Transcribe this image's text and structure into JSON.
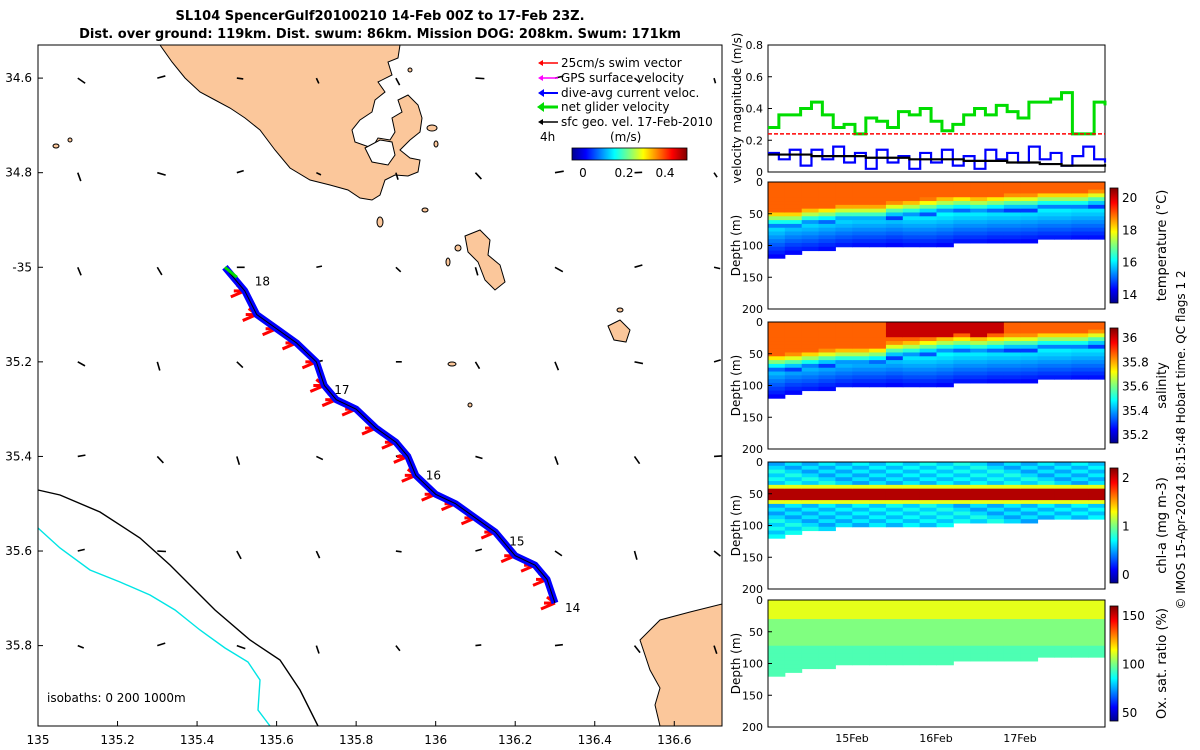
{
  "title": {
    "line1": "SL104 SpencerGulf20100210 14-Feb 00Z to 17-Feb 23Z.",
    "line2": "Dist. over ground: 119km. Dist. swum: 86km. Mission DOG: 208km. Swum: 171km"
  },
  "colors": {
    "land": "#fbc79b",
    "track": "#0000ff",
    "swim": "#ff0000",
    "glider": "#00dd00",
    "isobath200": "#000000",
    "isobath1000": "#00e5e5"
  },
  "chart_data": [
    {
      "type": "map",
      "xlim": [
        135,
        136.72
      ],
      "ylim": [
        -35.97,
        -34.53
      ],
      "xticks": [
        135,
        135.2,
        135.4,
        135.6,
        135.8,
        136,
        136.2,
        136.4,
        136.6
      ],
      "xtick_labels": [
        "135",
        "135.2",
        "135.4",
        "135.6",
        "135.8",
        "136",
        "136.2",
        "136.4",
        "136.6"
      ],
      "yticks": [
        -34.6,
        -34.8,
        -35.0,
        -35.2,
        -35.4,
        -35.6,
        -35.8
      ],
      "ytick_labels": [
        "34.6",
        "34.8",
        "-35",
        "35.2",
        "35.4",
        "35.6",
        "35.8"
      ],
      "legend": {
        "items": [
          {
            "label": "25cm/s swim vector",
            "color": "#ff0000"
          },
          {
            "label": "GPS surface velocity",
            "color": "#ff00ff"
          },
          {
            "label": "dive-avg current veloc.",
            "color": "#0000ff"
          },
          {
            "label": "net glider velocity",
            "color": "#00dd00"
          },
          {
            "label": "sfc geo. vel. 17-Feb-2010",
            "color": "#000000"
          }
        ],
        "note": "4h",
        "colorbar_unit": "(m/s)",
        "colorbar_ticks": [
          "0",
          "0.2",
          "0.4"
        ],
        "placement": "top-right"
      },
      "isobath_label": "isobaths: 0   200  1000m",
      "track": {
        "lon": [
          135.47,
          135.52,
          135.55,
          135.6,
          135.65,
          135.7,
          135.72,
          135.75,
          135.8,
          135.85,
          135.9,
          135.93,
          135.95,
          136.0,
          136.05,
          136.1,
          136.15,
          136.2,
          136.25,
          136.28,
          136.3
        ],
        "lat": [
          -35.0,
          -35.05,
          -35.1,
          -35.13,
          -35.16,
          -35.2,
          -35.25,
          -35.28,
          -35.3,
          -35.34,
          -35.37,
          -35.4,
          -35.44,
          -35.48,
          -35.5,
          -35.53,
          -35.56,
          -35.61,
          -35.63,
          -35.66,
          -35.71
        ]
      },
      "day_labels": [
        {
          "text": "18",
          "lon": 135.53,
          "lat": -35.03
        },
        {
          "text": "17",
          "lon": 135.73,
          "lat": -35.26
        },
        {
          "text": "16",
          "lon": 135.96,
          "lat": -35.44
        },
        {
          "text": "15",
          "lon": 136.17,
          "lat": -35.58
        },
        {
          "text": "14",
          "lon": 136.31,
          "lat": -35.72
        }
      ]
    },
    {
      "type": "line",
      "ylabel": "velocity magnitude (m/s)",
      "ylim": [
        0,
        0.8
      ],
      "yticks": [
        "0",
        "0.2",
        "0.4",
        "0.6",
        "0.8"
      ],
      "series": [
        {
          "color": "#00dd00",
          "values": [
            0.28,
            0.36,
            0.36,
            0.4,
            0.44,
            0.36,
            0.28,
            0.3,
            0.24,
            0.34,
            0.32,
            0.28,
            0.38,
            0.36,
            0.4,
            0.32,
            0.26,
            0.3,
            0.36,
            0.4,
            0.36,
            0.42,
            0.38,
            0.34,
            0.44,
            0.44,
            0.46,
            0.5,
            0.24,
            0.24,
            0.44,
            0.42
          ]
        },
        {
          "color": "#ff0000",
          "values": [
            0.24,
            0.24,
            0.24,
            0.24,
            0.24,
            0.24,
            0.24,
            0.24,
            0.24,
            0.24,
            0.24,
            0.24,
            0.24,
            0.24,
            0.24,
            0.24,
            0.24,
            0.24,
            0.24,
            0.24,
            0.24,
            0.24,
            0.24,
            0.24,
            0.24,
            0.24,
            0.24,
            0.24,
            0.24,
            0.24,
            0.24,
            0.24
          ]
        },
        {
          "color": "#0000ff",
          "values": [
            0.12,
            0.08,
            0.14,
            0.04,
            0.14,
            0.08,
            0.16,
            0.06,
            0.12,
            0.02,
            0.14,
            0.06,
            0.1,
            0.02,
            0.12,
            0.06,
            0.14,
            0.04,
            0.1,
            0.02,
            0.14,
            0.08,
            0.12,
            0.06,
            0.16,
            0.08,
            0.12,
            0.04,
            0.1,
            0.16,
            0.08,
            0.06
          ]
        },
        {
          "color": "#000000",
          "values": [
            0.11,
            0.11,
            0.11,
            0.11,
            0.1,
            0.1,
            0.1,
            0.1,
            0.1,
            0.09,
            0.09,
            0.09,
            0.09,
            0.08,
            0.08,
            0.08,
            0.08,
            0.08,
            0.07,
            0.07,
            0.07,
            0.07,
            0.06,
            0.06,
            0.06,
            0.05,
            0.05,
            0.04,
            0.04,
            0.04,
            0.04,
            0.05
          ]
        }
      ]
    },
    {
      "type": "heatmap",
      "variable": "temperature",
      "ylabel": "Depth (m)",
      "cbar_label": "temperature (°C)",
      "cbar_ticks": [
        "14",
        "16",
        "18",
        "20"
      ],
      "yticks": [
        "0",
        "50",
        "100",
        "150",
        "200"
      ],
      "thermocline_depth": [
        55,
        55,
        50,
        48,
        45,
        45,
        45,
        40,
        38,
        35,
        32,
        30,
        32,
        30,
        28,
        28,
        25,
        25,
        25,
        22
      ],
      "max_depth": [
        115,
        110,
        108,
        105,
        102,
        100,
        100,
        98,
        100,
        100,
        98,
        95,
        95,
        93,
        93,
        92,
        90,
        90,
        88,
        88
      ]
    },
    {
      "type": "heatmap",
      "variable": "salinity",
      "ylabel": "Depth (m)",
      "cbar_label": "salinity",
      "cbar_ticks": [
        "35.2",
        "35.4",
        "35.6",
        "35.8",
        "36"
      ],
      "yticks": [
        "0",
        "50",
        "100",
        "150",
        "200"
      ],
      "thermocline_depth": [
        60,
        58,
        55,
        52,
        50,
        50,
        48,
        40,
        38,
        35,
        32,
        30,
        32,
        30,
        28,
        28,
        25,
        25,
        25,
        22
      ],
      "max_depth": [
        115,
        110,
        108,
        105,
        102,
        100,
        100,
        98,
        100,
        100,
        98,
        95,
        95,
        93,
        93,
        92,
        90,
        90,
        88,
        88
      ]
    },
    {
      "type": "heatmap",
      "variable": "chl-a",
      "ylabel": "Depth (m)",
      "cbar_label": "chl-a (mg m-3)",
      "cbar_ticks": [
        "0",
        "1",
        "2"
      ],
      "yticks": [
        "0",
        "50",
        "100",
        "150",
        "200"
      ],
      "max_depth": [
        115,
        110,
        108,
        105,
        102,
        100,
        100,
        98,
        100,
        100,
        98,
        95,
        95,
        93,
        93,
        92,
        90,
        90,
        88,
        88
      ]
    },
    {
      "type": "heatmap",
      "variable": "oxygen",
      "ylabel": "Depth (m)",
      "cbar_label": "Ox. sat. ratio (%)",
      "cbar_ticks": [
        "50",
        "100",
        "150"
      ],
      "yticks": [
        "0",
        "50",
        "100",
        "150",
        "200"
      ],
      "max_depth": [
        115,
        110,
        108,
        105,
        102,
        100,
        100,
        98,
        100,
        100,
        98,
        95,
        95,
        93,
        93,
        92,
        90,
        90,
        88,
        88
      ]
    }
  ],
  "time_axis": {
    "labels": [
      "15Feb",
      "16Feb",
      "17Feb"
    ]
  },
  "credit": "© IMOS 15-Apr-2024 18:15:48 Hobart time. QC flags 1  2"
}
